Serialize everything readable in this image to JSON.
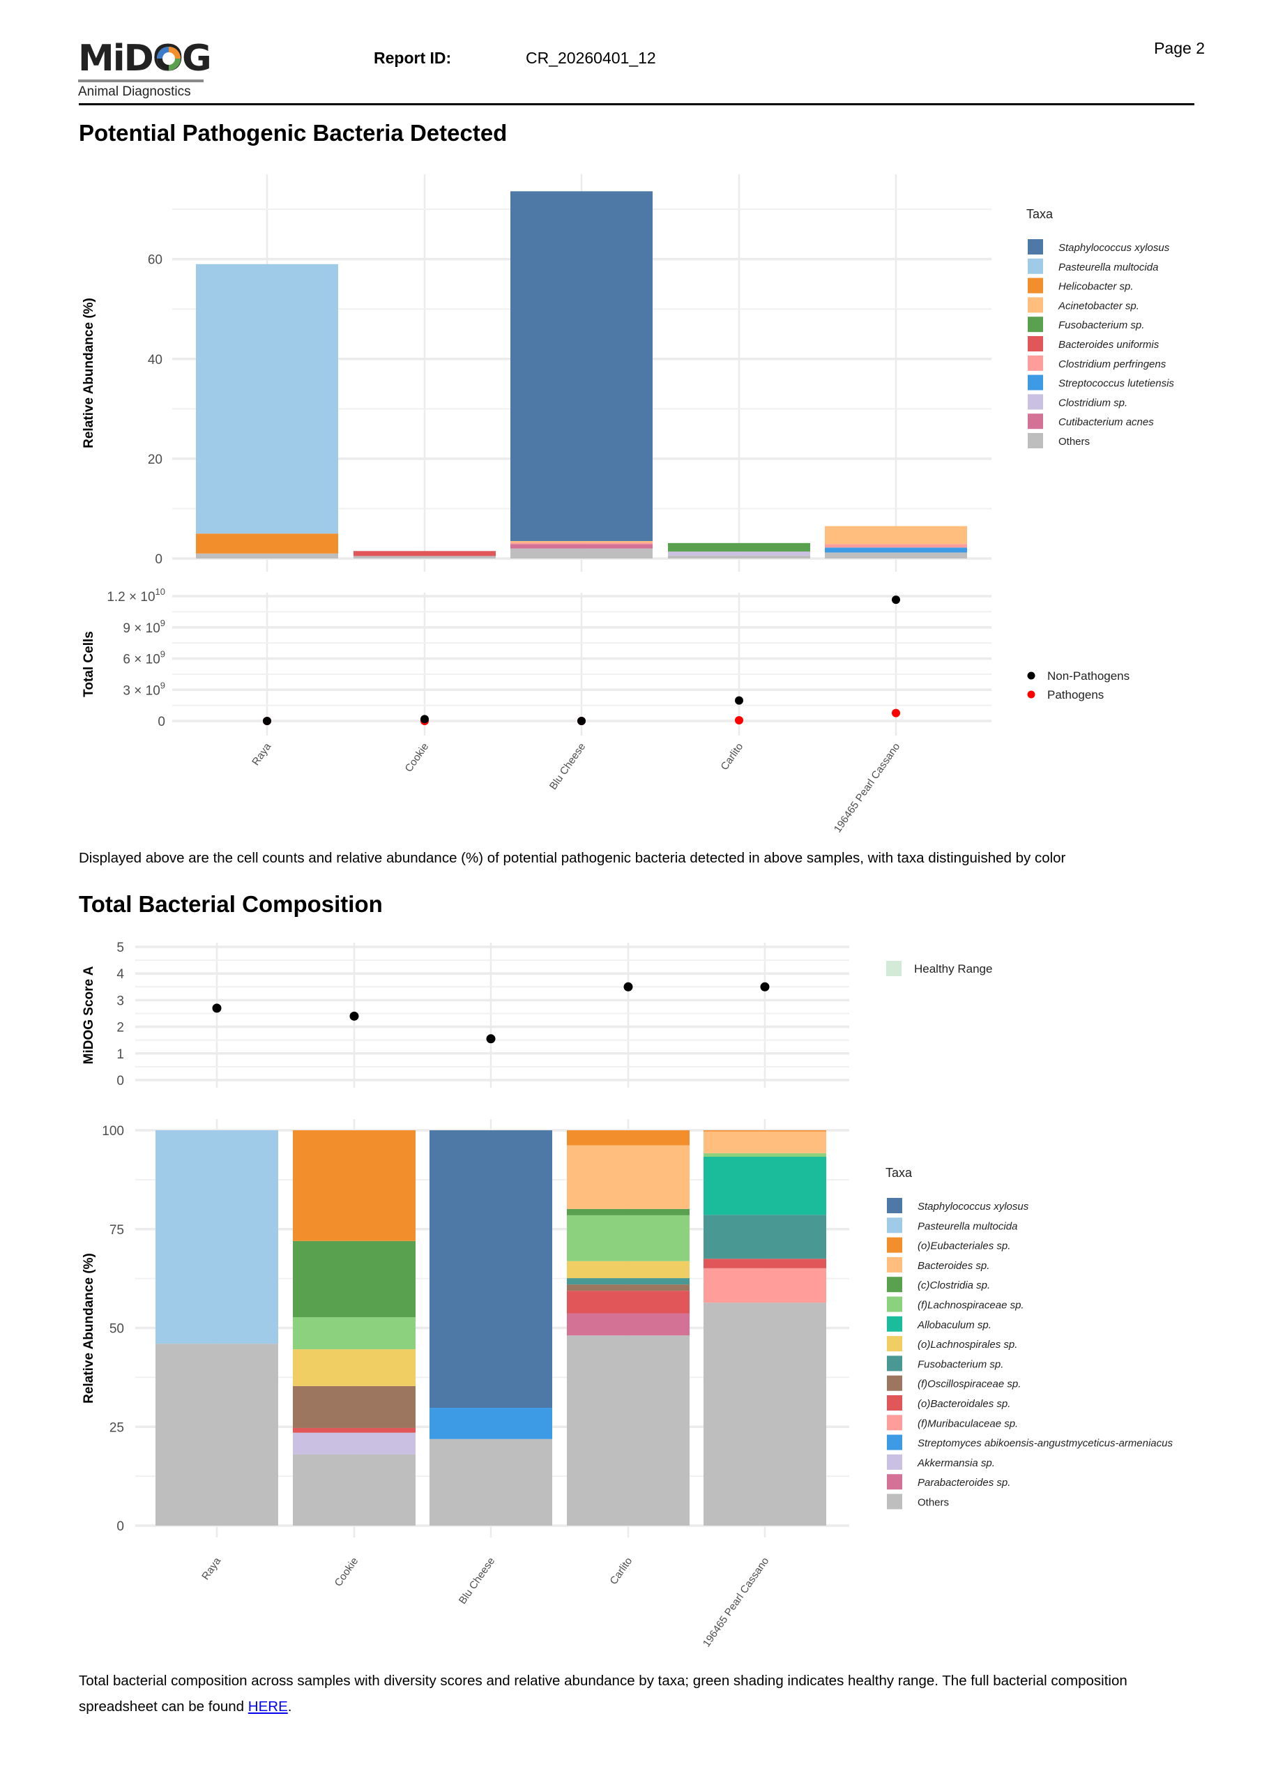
{
  "header": {
    "logo_text": "MiDOG",
    "logo_subtitle": "Animal Diagnostics",
    "report_id_label": "Report ID:",
    "report_id_value": "CR_20260401_12",
    "page_label": "Page 2"
  },
  "section1": {
    "title": "Potential Pathogenic Bacteria Detected",
    "caption": "Displayed above are the cell counts and relative abundance (%) of potential pathogenic bacteria detected in above samples, with taxa distinguished by color"
  },
  "section2": {
    "title": "Total Bacterial Composition",
    "caption_before_link": "Total bacterial composition across samples with diversity scores and relative abundance by taxa; green shading indicates healthy range. The full bacterial composition spreadsheet can be found ",
    "link_text": "HERE",
    "caption_after_link": "."
  },
  "chart_data": [
    {
      "type": "bar",
      "stacked": true,
      "ylabel": "Relative Abundance (%)",
      "ylim": [
        0,
        77
      ],
      "yticks": [
        0,
        20,
        40,
        60
      ],
      "grid": true,
      "legend_title": "Taxa",
      "legend_position": "right",
      "categories": [
        "Raya",
        "Cookie",
        "Blu Cheese",
        "Carlito",
        "196465 Pearl Cassano"
      ],
      "series": [
        {
          "name": "Staphylococcus xylosus",
          "color": "#4e79a7",
          "values": [
            0,
            0,
            70.1,
            0,
            0
          ]
        },
        {
          "name": "Pasteurella multocida",
          "color": "#a0cbe8",
          "values": [
            54.0,
            0,
            0,
            0,
            0
          ]
        },
        {
          "name": "Helicobacter sp.",
          "color": "#f28e2b",
          "values": [
            4.0,
            0,
            0,
            0,
            0
          ]
        },
        {
          "name": "Acinetobacter sp.",
          "color": "#ffbe7d",
          "values": [
            0,
            0,
            0.3,
            0,
            3.6
          ]
        },
        {
          "name": "Fusobacterium sp.",
          "color": "#59a14f",
          "values": [
            0,
            0,
            0,
            1.7,
            0
          ]
        },
        {
          "name": "Bacteroides uniformis",
          "color": "#e15759",
          "values": [
            0,
            1.0,
            0,
            0,
            0
          ]
        },
        {
          "name": "Clostridium perfringens",
          "color": "#ff9d9a",
          "values": [
            0,
            0,
            0.3,
            0,
            0.7
          ]
        },
        {
          "name": "Streptococcus lutetiensis",
          "color": "#3d9be6",
          "values": [
            0,
            0,
            0,
            0,
            1.0
          ]
        },
        {
          "name": "Clostridium sp.",
          "color": "#c9c0e2",
          "values": [
            0,
            0,
            0,
            0.8,
            0
          ]
        },
        {
          "name": "Cutibacterium acnes",
          "color": "#d37295",
          "values": [
            0,
            0,
            0.9,
            0,
            0
          ]
        },
        {
          "name": "Others",
          "color": "#bebebe",
          "values": [
            1.0,
            0.5,
            2.0,
            0.6,
            1.2
          ]
        }
      ]
    },
    {
      "type": "scatter",
      "ylabel": "Total Cells",
      "ylim": [
        0,
        12000000000
      ],
      "yticks": [
        {
          "value": 0,
          "mantissa": "0",
          "exponent": ""
        },
        {
          "value": 3000000000,
          "mantissa": "3 × 10",
          "exponent": "9"
        },
        {
          "value": 6000000000,
          "mantissa": "6 × 10",
          "exponent": "9"
        },
        {
          "value": 9000000000,
          "mantissa": "9 × 10",
          "exponent": "9"
        },
        {
          "value": 12000000000,
          "mantissa": "1.2 × 10",
          "exponent": "10"
        }
      ],
      "grid": true,
      "legend_position": "right",
      "categories": [
        "Raya",
        "Cookie",
        "Blu Cheese",
        "Carlito",
        "196465 Pearl Cassano"
      ],
      "series": [
        {
          "name": "Pathogens",
          "color": "#ff0000",
          "values": [
            0,
            0,
            0,
            70000000,
            760000000
          ]
        },
        {
          "name": "Non-Pathogens",
          "color": "#000000",
          "values": [
            0,
            180000000,
            0,
            1970000000,
            11660000000
          ]
        }
      ],
      "legend_order": [
        "Non-Pathogens",
        "Pathogens"
      ]
    },
    {
      "type": "scatter",
      "ylabel": "MiDOG Score A",
      "ylim": [
        0,
        5
      ],
      "yticks": [
        0,
        1,
        2,
        3,
        4,
        5
      ],
      "grid": true,
      "legend_position": "right",
      "legend_entry": "Healthy Range",
      "legend_color": "#d4ead9",
      "categories": [
        "Raya",
        "Cookie",
        "Blu Cheese",
        "Carlito",
        "196465 Pearl Cassano"
      ],
      "values": [
        2.7,
        2.4,
        1.55,
        3.5,
        3.5
      ],
      "point_color": "#000000"
    },
    {
      "type": "bar",
      "stacked": true,
      "ylabel": "Relative Abundance (%)",
      "ylim": [
        0,
        100
      ],
      "yticks": [
        0,
        25,
        50,
        75,
        100
      ],
      "grid": true,
      "legend_title": "Taxa",
      "legend_position": "right",
      "categories": [
        "Raya",
        "Cookie",
        "Blu Cheese",
        "Carlito",
        "196465 Pearl Cassano"
      ],
      "series": [
        {
          "name": "Staphylococcus xylosus",
          "color": "#4e79a7",
          "values": [
            0,
            0,
            70.2,
            0,
            0
          ]
        },
        {
          "name": "Pasteurella multocida",
          "color": "#a0cbe8",
          "values": [
            54.0,
            0,
            0,
            0,
            0
          ]
        },
        {
          "name": "(o)Eubacteriales sp.",
          "color": "#f28e2b",
          "values": [
            0,
            28.0,
            0,
            3.8,
            0.3
          ]
        },
        {
          "name": "Bacteroides sp.",
          "color": "#ffbe7d",
          "values": [
            0,
            0,
            0,
            16.1,
            5.5
          ]
        },
        {
          "name": "(c)Clostridia sp.",
          "color": "#59a14f",
          "values": [
            0,
            19.3,
            0,
            1.6,
            0
          ]
        },
        {
          "name": "(f)Lachnospiraceae sp.",
          "color": "#8cd17d",
          "values": [
            0,
            8.1,
            0,
            11.6,
            0.9
          ]
        },
        {
          "name": "Allobaculum sp.",
          "color": "#1bbc9b",
          "values": [
            0,
            0,
            0,
            0,
            14.7
          ]
        },
        {
          "name": "(o)Lachnospirales sp.",
          "color": "#f1ce63",
          "values": [
            0,
            9.3,
            0,
            4.3,
            0
          ]
        },
        {
          "name": "Fusobacterium sp.",
          "color": "#499894",
          "values": [
            0,
            0,
            0,
            1.6,
            11.1
          ]
        },
        {
          "name": "(f)Oscillospiraceae sp.",
          "color": "#9d7660",
          "values": [
            0,
            10.6,
            0,
            1.6,
            0
          ]
        },
        {
          "name": "(o)Bacteroidales sp.",
          "color": "#e15759",
          "values": [
            0,
            1.2,
            0,
            5.7,
            2.4
          ]
        },
        {
          "name": "(f)Muribaculaceae sp.",
          "color": "#ff9d9a",
          "values": [
            0,
            0,
            0,
            0,
            8.7
          ]
        },
        {
          "name": "Streptomyces abikoensis-angustmyceticus-armeniacus",
          "color": "#3d9be6",
          "values": [
            0,
            0,
            7.9,
            0,
            0
          ]
        },
        {
          "name": "Akkermansia sp.",
          "color": "#c9c0e2",
          "values": [
            0,
            5.5,
            0,
            0,
            0
          ]
        },
        {
          "name": "Parabacteroides sp.",
          "color": "#d37295",
          "values": [
            0,
            0,
            0,
            5.6,
            0
          ]
        },
        {
          "name": "Others",
          "color": "#bebebe",
          "values": [
            46.0,
            18.0,
            21.9,
            48.1,
            56.4
          ]
        }
      ]
    }
  ]
}
